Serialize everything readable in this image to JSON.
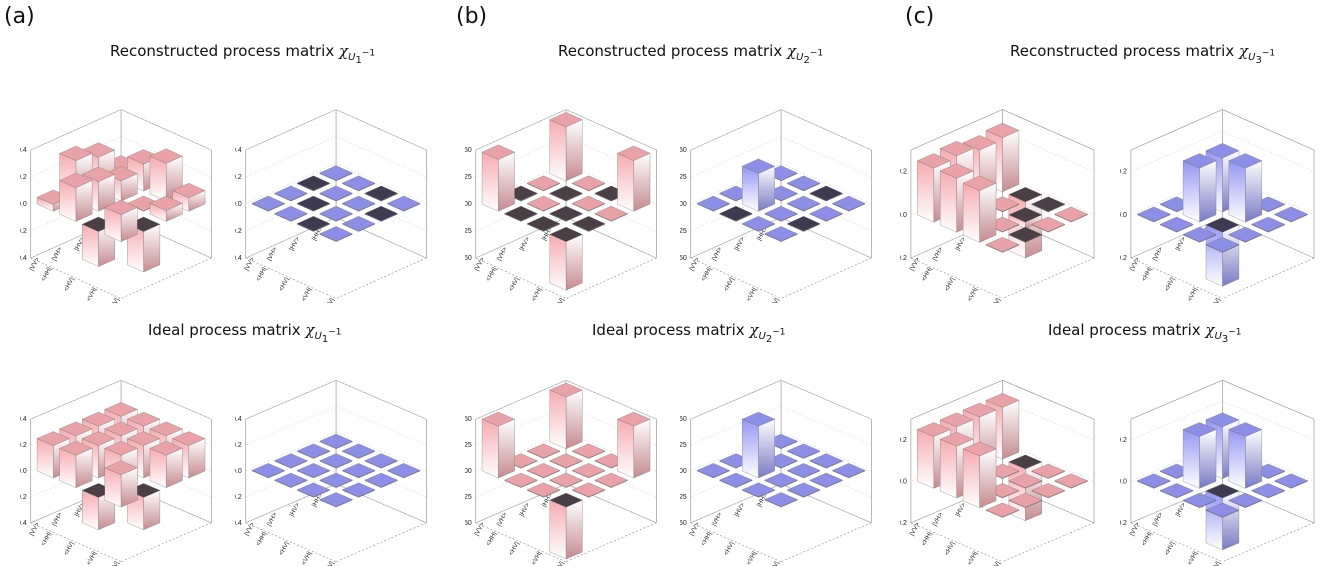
{
  "panels": [
    {
      "label": "(a)",
      "recon_title": "Reconstructed process matrix",
      "ideal_title": "Ideal process matrix",
      "chi": "χ",
      "sub": "U",
      "subsub": "1",
      "sup": "−1"
    },
    {
      "label": "(b)",
      "recon_title": "Reconstructed process matrix",
      "ideal_title": "Ideal process matrix",
      "chi": "χ",
      "sub": "U",
      "subsub": "2",
      "sup": "−1"
    },
    {
      "label": "(c)",
      "recon_title": "Reconstructed process matrix",
      "ideal_title": "Ideal process matrix",
      "chi": "χ",
      "sub": "U",
      "subsub": "3",
      "sup": "−1"
    }
  ],
  "basis_labels_row": [
    "|HH>",
    "|HV>",
    "|VH>",
    "|VV>"
  ],
  "basis_labels_col": [
    "<HH|",
    "<HV|",
    "<VH|",
    "<VV|"
  ],
  "colors": {
    "positive": "#e9a3a8",
    "negative": "#4a3f44",
    "imag_pos": "#8d8fe6",
    "imag_neg": "#3d3a52",
    "edge": "#666666"
  },
  "chart_data": [
    {
      "type": "bar3d",
      "panel": "a",
      "kind": "reconstructed",
      "part": "real",
      "zlim": [
        -0.4,
        0.4
      ],
      "zticks": [
        "0.4",
        "0.2",
        "0.0",
        "-0.2",
        "-0.4"
      ],
      "values": [
        [
          0.08,
          0.25,
          0.3,
          0.05
        ],
        [
          0.2,
          0.15,
          0.22,
          0.25
        ],
        [
          0.28,
          0.02,
          -0.02,
          -0.26
        ],
        [
          0.1,
          0.08,
          -0.3,
          0.2
        ]
      ]
    },
    {
      "type": "bar3d",
      "panel": "a",
      "kind": "reconstructed",
      "part": "imag",
      "zlim": [
        -0.4,
        0.4
      ],
      "zticks": [
        "0.4",
        "0.2",
        "0.0",
        "-0.2",
        "-0.4"
      ],
      "values": [
        [
          0.01,
          -0.01,
          0.01,
          0.0
        ],
        [
          0.0,
          0.01,
          -0.01,
          0.01
        ],
        [
          -0.01,
          0.0,
          0.01,
          -0.01
        ],
        [
          0.01,
          -0.02,
          0.0,
          0.01
        ]
      ]
    },
    {
      "type": "bar3d",
      "panel": "a",
      "kind": "ideal",
      "part": "real",
      "zlim": [
        -0.4,
        0.4
      ],
      "zticks": [
        "0.4",
        "0.2",
        "0.0",
        "-0.2",
        "-0.4"
      ],
      "values": [
        [
          0.25,
          0.25,
          0.25,
          0.25
        ],
        [
          0.25,
          0.25,
          0.25,
          0.25
        ],
        [
          0.25,
          0.25,
          0.25,
          -0.25
        ],
        [
          0.25,
          0.25,
          -0.25,
          0.25
        ]
      ]
    },
    {
      "type": "bar3d",
      "panel": "a",
      "kind": "ideal",
      "part": "imag",
      "zlim": [
        -0.4,
        0.4
      ],
      "zticks": [
        "0.4",
        "0.2",
        "0.0",
        "-0.2",
        "-0.4"
      ],
      "values": [
        [
          0,
          0,
          0,
          0
        ],
        [
          0,
          0,
          0,
          0
        ],
        [
          0,
          0,
          0,
          0
        ],
        [
          0,
          0,
          0,
          0
        ]
      ]
    },
    {
      "type": "bar3d",
      "panel": "b",
      "kind": "reconstructed",
      "part": "real",
      "zlim": [
        -0.5,
        0.5
      ],
      "zticks": [
        "0.50",
        "0.25",
        "0.00",
        "-0.25",
        "-0.50"
      ],
      "values": [
        [
          0.5,
          0.02,
          -0.02,
          0.48
        ],
        [
          0.01,
          -0.01,
          0.02,
          -0.01
        ],
        [
          -0.02,
          0.01,
          -0.01,
          -0.02
        ],
        [
          0.47,
          0.02,
          -0.01,
          -0.45
        ]
      ]
    },
    {
      "type": "bar3d",
      "panel": "b",
      "kind": "reconstructed",
      "part": "imag",
      "zlim": [
        -0.5,
        0.5
      ],
      "zticks": [
        "0.50",
        "0.25",
        "0.00",
        "-0.25",
        "-0.50"
      ],
      "values": [
        [
          0.0,
          -0.01,
          0.01,
          0.0
        ],
        [
          0.01,
          0.0,
          0.35,
          -0.01
        ],
        [
          -0.01,
          0.0,
          0.0,
          0.01
        ],
        [
          0.0,
          0.01,
          -0.01,
          0.0
        ]
      ]
    },
    {
      "type": "bar3d",
      "panel": "b",
      "kind": "ideal",
      "part": "real",
      "zlim": [
        -0.5,
        0.5
      ],
      "zticks": [
        "0.50",
        "0.25",
        "0.00",
        "-0.25",
        "-0.50"
      ],
      "values": [
        [
          0.5,
          0,
          0,
          0.5
        ],
        [
          0,
          0,
          0,
          0
        ],
        [
          0,
          0,
          0,
          0
        ],
        [
          0.5,
          0,
          0,
          -0.5
        ]
      ]
    },
    {
      "type": "bar3d",
      "panel": "b",
      "kind": "ideal",
      "part": "imag",
      "zlim": [
        -0.5,
        0.5
      ],
      "zticks": [
        "0.50",
        "0.25",
        "0.00",
        "-0.25",
        "-0.50"
      ],
      "values": [
        [
          0,
          0,
          0,
          0
        ],
        [
          0,
          0,
          0.5,
          0
        ],
        [
          0,
          0,
          0,
          0
        ],
        [
          0,
          0,
          0,
          0
        ]
      ]
    },
    {
      "type": "bar3d",
      "panel": "c",
      "kind": "reconstructed",
      "part": "real",
      "zlim": [
        -0.2,
        0.3
      ],
      "zticks": [
        "0.2",
        "0.0",
        "-0.2"
      ],
      "values": [
        [
          0.25,
          0.24,
          0.26,
          0.25
        ],
        [
          -0.26,
          0.02,
          0.03,
          0.25
        ],
        [
          -0.02,
          -0.03,
          0.01,
          0.24
        ],
        [
          0.02,
          0.01,
          -0.02,
          0.0
        ]
      ]
    },
    {
      "type": "bar3d",
      "panel": "c",
      "kind": "reconstructed",
      "part": "imag",
      "zlim": [
        -0.2,
        0.3
      ],
      "zticks": [
        "0.2",
        "0.0",
        "-0.2"
      ],
      "values": [
        [
          0.0,
          0.01,
          0.0,
          0.0
        ],
        [
          0.0,
          0.25,
          0.25,
          0.0
        ],
        [
          0.0,
          0.25,
          -0.25,
          0.0
        ],
        [
          0.0,
          0.0,
          0.0,
          0.0
        ]
      ]
    },
    {
      "type": "bar3d",
      "panel": "c",
      "kind": "ideal",
      "part": "real",
      "zlim": [
        -0.2,
        0.3
      ],
      "zticks": [
        "0.2",
        "0.0",
        "-0.2"
      ],
      "values": [
        [
          0.25,
          0.25,
          0.25,
          0.25
        ],
        [
          -0.25,
          0,
          0,
          0.25
        ],
        [
          0,
          0,
          0,
          0.25
        ],
        [
          0,
          0,
          0,
          0
        ]
      ]
    },
    {
      "type": "bar3d",
      "panel": "c",
      "kind": "ideal",
      "part": "imag",
      "zlim": [
        -0.2,
        0.3
      ],
      "zticks": [
        "0.2",
        "0.0",
        "-0.2"
      ],
      "values": [
        [
          0,
          0,
          0,
          0
        ],
        [
          0,
          0.25,
          0.25,
          0
        ],
        [
          0,
          0.25,
          -0.25,
          0
        ],
        [
          0,
          0,
          0,
          0
        ]
      ]
    }
  ]
}
